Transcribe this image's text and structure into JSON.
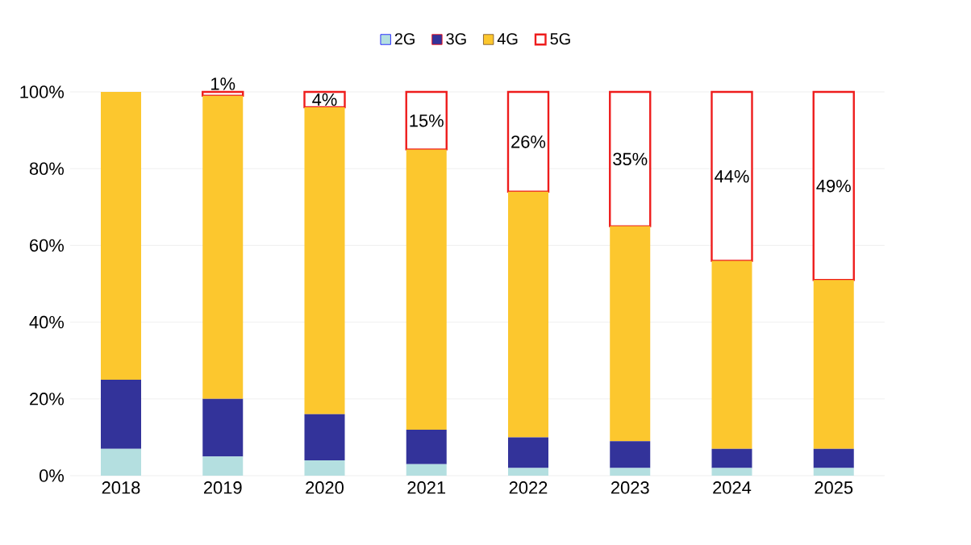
{
  "chart_data": {
    "type": "bar",
    "stacked": true,
    "categories": [
      "2018",
      "2019",
      "2020",
      "2021",
      "2022",
      "2023",
      "2024",
      "2025"
    ],
    "series": [
      {
        "name": "2G",
        "color": "#b4dfe0",
        "values": [
          7,
          5,
          4,
          3,
          2,
          2,
          2,
          2
        ]
      },
      {
        "name": "3G",
        "color": "#33339a",
        "values": [
          18,
          15,
          12,
          9,
          8,
          7,
          5,
          5
        ]
      },
      {
        "name": "4G",
        "color": "#fcc72e",
        "values": [
          75,
          79,
          80,
          73,
          64,
          56,
          49,
          44
        ]
      },
      {
        "name": "5G",
        "color": "#ee1c1c",
        "values": [
          0,
          1,
          4,
          15,
          26,
          35,
          44,
          49
        ],
        "value_labels": [
          null,
          "1%",
          "4%",
          "15%",
          "26%",
          "35%",
          "44%",
          "49%"
        ]
      }
    ],
    "ylim": [
      0,
      100
    ],
    "yticks": [
      {
        "value": 0,
        "label": "0%"
      },
      {
        "value": 20,
        "label": "20%"
      },
      {
        "value": 40,
        "label": "40%"
      },
      {
        "value": 60,
        "label": "60%"
      },
      {
        "value": 80,
        "label": "80%"
      },
      {
        "value": 100,
        "label": "100%"
      }
    ],
    "grid": "y",
    "legend": "top"
  }
}
